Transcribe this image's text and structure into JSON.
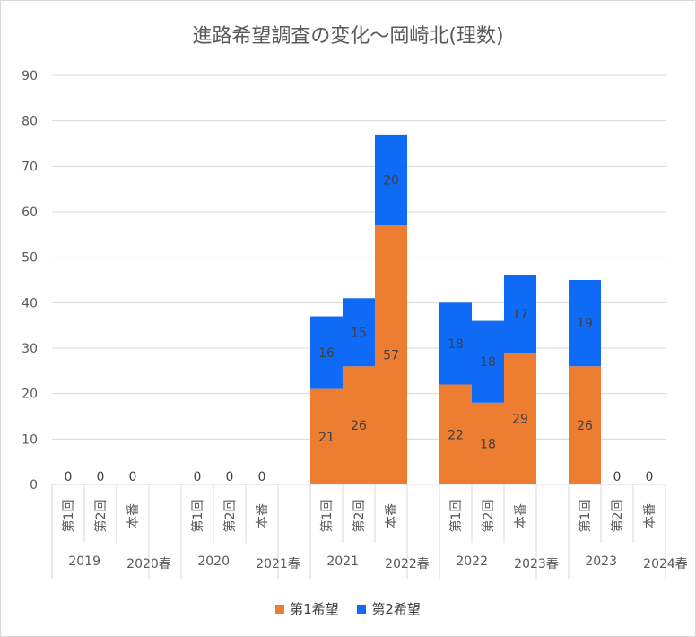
{
  "chart_data": {
    "type": "bar",
    "stacked": true,
    "title": "進路希望調査の変化〜岡崎北(理数)",
    "xlabel": "",
    "ylabel": "",
    "ylim": [
      0,
      90
    ],
    "yticks": [
      0,
      10,
      20,
      30,
      40,
      50,
      60,
      70,
      80,
      90
    ],
    "grid": true,
    "legend_position": "bottom",
    "groups": [
      {
        "labels": [
          "2019",
          "2020春"
        ],
        "categories": [
          "第1回",
          "第2回",
          "本番"
        ]
      },
      {
        "labels": [
          "2020",
          "2021春"
        ],
        "categories": [
          "第1回",
          "第2回",
          "本番"
        ]
      },
      {
        "labels": [
          "2021",
          "2022春"
        ],
        "categories": [
          "第1回",
          "第2回",
          "本番"
        ]
      },
      {
        "labels": [
          "2022",
          "2023春"
        ],
        "categories": [
          "第1回",
          "第2回",
          "本番"
        ]
      },
      {
        "labels": [
          "2023",
          "2024春"
        ],
        "categories": [
          "第1回",
          "第2回",
          "本番"
        ]
      }
    ],
    "series": [
      {
        "name": "第1希望",
        "color": "#ED7D31",
        "values": [
          0,
          0,
          0,
          0,
          0,
          0,
          21,
          26,
          57,
          22,
          18,
          29,
          26,
          null,
          null
        ]
      },
      {
        "name": "第2希望",
        "color": "#0F6AF5",
        "values": [
          null,
          null,
          null,
          null,
          null,
          null,
          16,
          15,
          20,
          18,
          18,
          17,
          19,
          0,
          0
        ]
      }
    ]
  }
}
